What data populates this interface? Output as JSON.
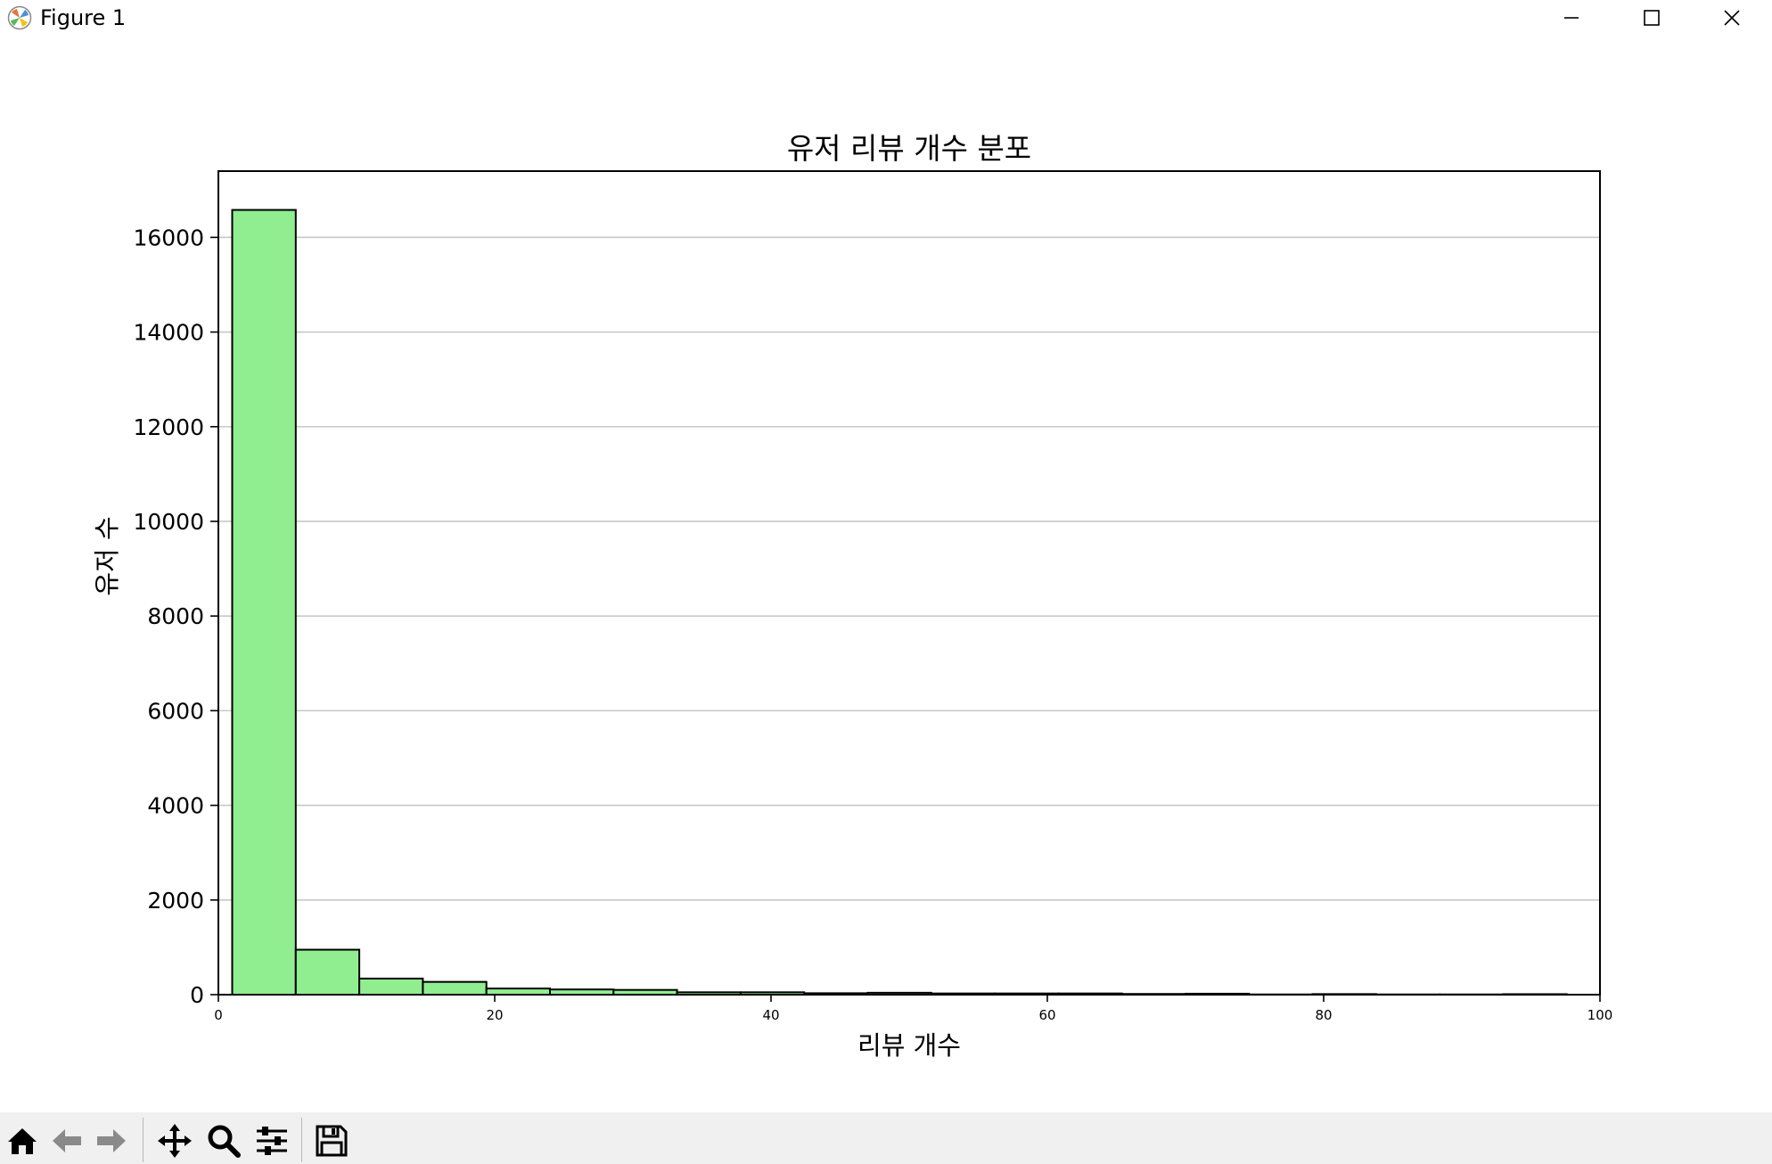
{
  "window": {
    "title": "Figure 1",
    "app_icon": "matplotlib-icon",
    "controls": [
      "minimize-icon",
      "maximize-icon",
      "close-icon"
    ]
  },
  "toolbar": {
    "icons": [
      "home-icon",
      "back-arrow-icon",
      "forward-arrow-icon",
      "pan-icon",
      "zoom-icon",
      "configure-subplots-icon",
      "save-icon"
    ]
  },
  "chart_data": {
    "type": "bar",
    "title": "유저 리뷰 개수 분포",
    "xlabel": "리뷰 개수",
    "ylabel": "유저 수",
    "xlim": [
      0,
      100
    ],
    "ylim": [
      0,
      17400
    ],
    "xticks": [
      0,
      20,
      40,
      60,
      80,
      100
    ],
    "yticks": [
      0,
      2000,
      4000,
      6000,
      8000,
      10000,
      12000,
      14000,
      16000
    ],
    "grid": "y",
    "bar_color": "#90ee90",
    "edge_color": "#000000",
    "bins": [
      {
        "x0": 1.0,
        "x1": 5.6,
        "count": 16580
      },
      {
        "x0": 5.6,
        "x1": 10.2,
        "count": 950
      },
      {
        "x0": 10.2,
        "x1": 14.8,
        "count": 340
      },
      {
        "x0": 14.8,
        "x1": 19.4,
        "count": 270
      },
      {
        "x0": 19.4,
        "x1": 24.0,
        "count": 130
      },
      {
        "x0": 24.0,
        "x1": 28.6,
        "count": 110
      },
      {
        "x0": 28.6,
        "x1": 33.2,
        "count": 100
      },
      {
        "x0": 33.2,
        "x1": 37.8,
        "count": 50
      },
      {
        "x0": 37.8,
        "x1": 42.4,
        "count": 50
      },
      {
        "x0": 42.4,
        "x1": 47.0,
        "count": 30
      },
      {
        "x0": 47.0,
        "x1": 51.6,
        "count": 40
      },
      {
        "x0": 51.6,
        "x1": 56.2,
        "count": 25
      },
      {
        "x0": 56.2,
        "x1": 60.8,
        "count": 25
      },
      {
        "x0": 60.8,
        "x1": 65.4,
        "count": 25
      },
      {
        "x0": 65.4,
        "x1": 70.0,
        "count": 15
      },
      {
        "x0": 70.0,
        "x1": 74.6,
        "count": 20
      },
      {
        "x0": 74.6,
        "x1": 79.2,
        "count": 5
      },
      {
        "x0": 79.2,
        "x1": 83.8,
        "count": 12
      },
      {
        "x0": 83.8,
        "x1": 88.4,
        "count": 5
      },
      {
        "x0": 88.4,
        "x1": 93.0,
        "count": 5
      },
      {
        "x0": 93.0,
        "x1": 97.6,
        "count": 10
      }
    ]
  }
}
